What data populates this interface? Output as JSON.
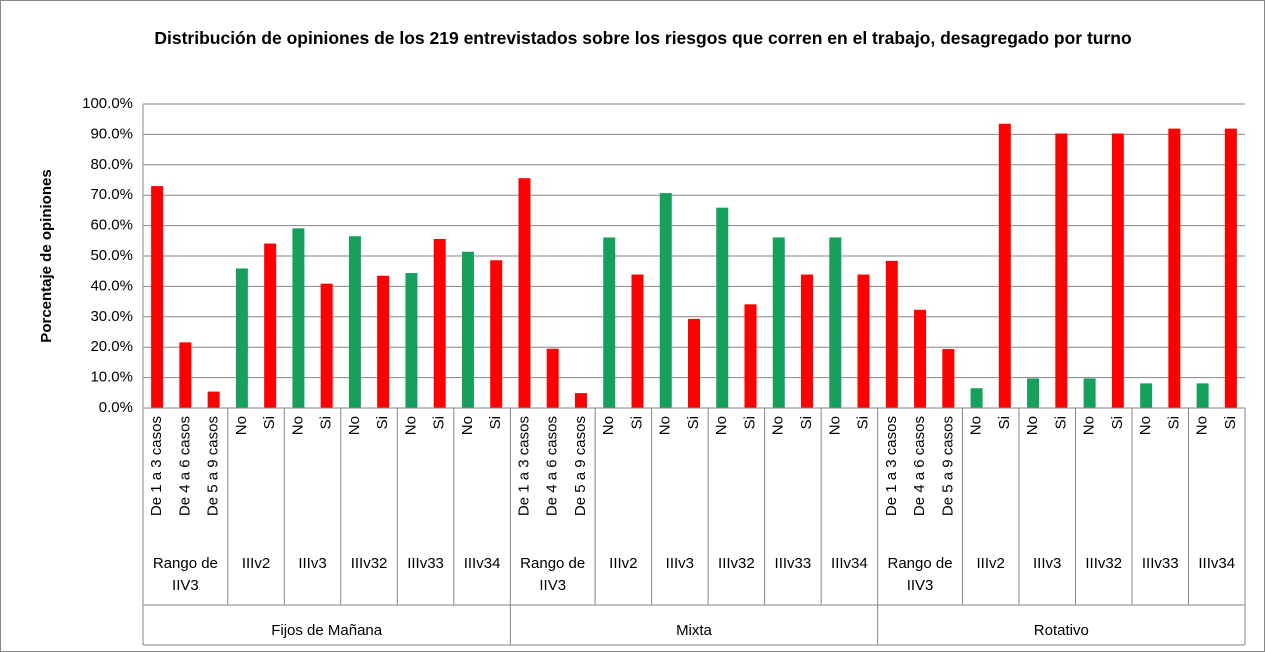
{
  "chart_data": {
    "type": "bar",
    "title": "Distribución de opiniones de los 219 entrevistados sobre los riesgos que corren en el trabajo, desagregado por turno",
    "y_label": "Porcentaje de opiniones",
    "ylim": [
      0,
      100
    ],
    "yticks": [
      {
        "value": 0,
        "label": "0.0%"
      },
      {
        "value": 10,
        "label": "10.0%"
      },
      {
        "value": 20,
        "label": "20.0%"
      },
      {
        "value": 30,
        "label": "30.0%"
      },
      {
        "value": 40,
        "label": "40.0%"
      },
      {
        "value": 50,
        "label": "50.0%"
      },
      {
        "value": 60,
        "label": "60.0%"
      },
      {
        "value": 70,
        "label": "70.0%"
      },
      {
        "value": 80,
        "label": "80.0%"
      },
      {
        "value": 90,
        "label": "90.0%"
      },
      {
        "value": 100,
        "label": "100.0%"
      }
    ],
    "grid": true,
    "groups": [
      {
        "name": "Fijos de Mañana",
        "subgroups": [
          {
            "name": "Rango de IIV3",
            "categories": [
              "De 1 a 3 casos",
              "De 4 a 6 casos",
              "De 5 a 9 casos"
            ],
            "values": [
              73.0,
              21.6,
              5.4
            ],
            "colors": [
              "#ff0000",
              "#ff0000",
              "#ff0000"
            ]
          },
          {
            "name": "IIIv2",
            "categories": [
              "No",
              "Si"
            ],
            "values": [
              45.9,
              54.1
            ],
            "colors": [
              "#17a05d",
              "#ff0000"
            ]
          },
          {
            "name": "IIIv3",
            "categories": [
              "No",
              "Si"
            ],
            "values": [
              59.1,
              40.9
            ],
            "colors": [
              "#17a05d",
              "#ff0000"
            ]
          },
          {
            "name": "IIIv32",
            "categories": [
              "No",
              "Si"
            ],
            "values": [
              56.5,
              43.5
            ],
            "colors": [
              "#17a05d",
              "#ff0000"
            ]
          },
          {
            "name": "IIIv33",
            "categories": [
              "No",
              "Si"
            ],
            "values": [
              44.4,
              55.6
            ],
            "colors": [
              "#17a05d",
              "#ff0000"
            ]
          },
          {
            "name": "IIIv34",
            "categories": [
              "No",
              "Si"
            ],
            "values": [
              51.4,
              48.6
            ],
            "colors": [
              "#17a05d",
              "#ff0000"
            ]
          }
        ]
      },
      {
        "name": "Mixta",
        "subgroups": [
          {
            "name": "Rango de IIV3",
            "categories": [
              "De 1 a 3 casos",
              "De 4 a 6 casos",
              "De 5 a 9 casos"
            ],
            "values": [
              75.6,
              19.5,
              4.9
            ],
            "colors": [
              "#ff0000",
              "#ff0000",
              "#ff0000"
            ]
          },
          {
            "name": "IIIv2",
            "categories": [
              "No",
              "Si"
            ],
            "values": [
              56.1,
              43.9
            ],
            "colors": [
              "#17a05d",
              "#ff0000"
            ]
          },
          {
            "name": "IIIv3",
            "categories": [
              "No",
              "Si"
            ],
            "values": [
              70.7,
              29.3
            ],
            "colors": [
              "#17a05d",
              "#ff0000"
            ]
          },
          {
            "name": "IIIv32",
            "categories": [
              "No",
              "Si"
            ],
            "values": [
              65.9,
              34.1
            ],
            "colors": [
              "#17a05d",
              "#ff0000"
            ]
          },
          {
            "name": "IIIv33",
            "categories": [
              "No",
              "Si"
            ],
            "values": [
              56.1,
              43.9
            ],
            "colors": [
              "#17a05d",
              "#ff0000"
            ]
          },
          {
            "name": "IIIv34",
            "categories": [
              "No",
              "Si"
            ],
            "values": [
              56.1,
              43.9
            ],
            "colors": [
              "#17a05d",
              "#ff0000"
            ]
          }
        ]
      },
      {
        "name": "Rotativo",
        "subgroups": [
          {
            "name": "Rango de IIV3",
            "categories": [
              "De 1 a 3 casos",
              "De 4 a 6 casos",
              "De 5 a 9 casos"
            ],
            "values": [
              48.4,
              32.3,
              19.4
            ],
            "colors": [
              "#ff0000",
              "#ff0000",
              "#ff0000"
            ]
          },
          {
            "name": "IIIv2",
            "categories": [
              "No",
              "Si"
            ],
            "values": [
              6.5,
              93.5
            ],
            "colors": [
              "#17a05d",
              "#ff0000"
            ]
          },
          {
            "name": "IIIv3",
            "categories": [
              "No",
              "Si"
            ],
            "values": [
              9.7,
              90.3
            ],
            "colors": [
              "#17a05d",
              "#ff0000"
            ]
          },
          {
            "name": "IIIv32",
            "categories": [
              "No",
              "Si"
            ],
            "values": [
              9.7,
              90.3
            ],
            "colors": [
              "#17a05d",
              "#ff0000"
            ]
          },
          {
            "name": "IIIv33",
            "categories": [
              "No",
              "Si"
            ],
            "values": [
              8.1,
              91.9
            ],
            "colors": [
              "#17a05d",
              "#ff0000"
            ]
          },
          {
            "name": "IIIv34",
            "categories": [
              "No",
              "Si"
            ],
            "values": [
              8.1,
              91.9
            ],
            "colors": [
              "#17a05d",
              "#ff0000"
            ]
          }
        ]
      }
    ]
  }
}
